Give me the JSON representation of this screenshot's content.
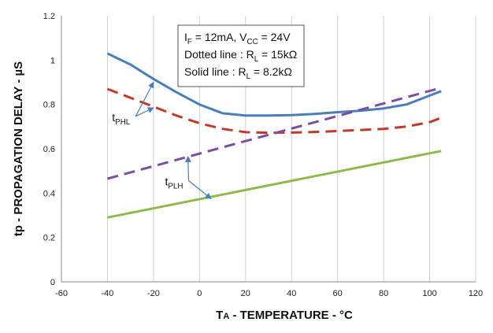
{
  "chart_data": {
    "type": "line",
    "xlabel": {
      "main": "T",
      "sub": "A",
      "rest": " - TEMPERATURE - °C"
    },
    "ylabel": "tp - PROPAGATION DELAY - µS",
    "xlim": [
      -60,
      120
    ],
    "ylim": [
      0,
      1.2
    ],
    "xticks": [
      "-60",
      "-40",
      "-20",
      "0",
      "20",
      "40",
      "60",
      "80",
      "100",
      "120"
    ],
    "yticks": [
      "0",
      "0.2",
      "0.4",
      "0.6",
      "0.8",
      "1",
      "1.2"
    ],
    "grid": "vertical",
    "colors": {
      "blue": "#4a7ebb",
      "red": "#c0392b",
      "purple": "#7b4fa0",
      "green": "#8dbb4b",
      "axis": "#888888",
      "grid": "#d0d0d0"
    },
    "series": [
      {
        "key": "tphl_8k2",
        "style": "solid",
        "color": "#4a7ebb",
        "x": [
          -40,
          -30,
          -20,
          -10,
          0,
          10,
          20,
          30,
          40,
          50,
          60,
          70,
          80,
          90,
          100,
          105
        ],
        "y": [
          1.03,
          0.98,
          0.915,
          0.855,
          0.8,
          0.76,
          0.75,
          0.75,
          0.752,
          0.757,
          0.765,
          0.772,
          0.782,
          0.8,
          0.84,
          0.86
        ]
      },
      {
        "key": "tphl_15k",
        "style": "dashed",
        "color": "#c0392b",
        "x": [
          -40,
          -30,
          -20,
          -10,
          0,
          10,
          20,
          30,
          40,
          50,
          60,
          70,
          80,
          90,
          100,
          105
        ],
        "y": [
          0.87,
          0.83,
          0.79,
          0.75,
          0.715,
          0.69,
          0.675,
          0.672,
          0.673,
          0.676,
          0.68,
          0.685,
          0.69,
          0.7,
          0.72,
          0.74
        ]
      },
      {
        "key": "tplh_15k",
        "style": "dashed",
        "color": "#7b4fa0",
        "x": [
          -40,
          105
        ],
        "y": [
          0.465,
          0.875
        ]
      },
      {
        "key": "tplh_8k2",
        "style": "solid",
        "color": "#8dbb4b",
        "x": [
          -40,
          105
        ],
        "y": [
          0.29,
          0.59
        ]
      }
    ],
    "legend": {
      "lines": [
        {
          "parts": [
            {
              "t": "I"
            },
            {
              "t": "F",
              "sub": true
            },
            {
              "t": " = 12mA, V"
            },
            {
              "t": "CC",
              "sub": true
            },
            {
              "t": " = 24V"
            }
          ]
        },
        {
          "parts": [
            {
              "t": "Dotted line : R"
            },
            {
              "t": "L",
              "sub": true
            },
            {
              "t": " = 15kΩ"
            }
          ]
        },
        {
          "parts": [
            {
              "t": "Solid line : R"
            },
            {
              "t": "L",
              "sub": true
            },
            {
              "t": " = 8.2kΩ"
            }
          ]
        }
      ],
      "placement": "top-center"
    },
    "annotations": [
      {
        "key": "tphl",
        "main": "t",
        "sub": "PHL",
        "anchor_data": [
          -38,
          0.725
        ],
        "arrows_to": [
          [
            -20,
            0.9
          ],
          [
            -20,
            0.785
          ]
        ]
      },
      {
        "key": "tplh",
        "main": "t",
        "sub": "PLH",
        "anchor_data": [
          -15,
          0.435
        ],
        "arrows_to": [
          [
            -5,
            0.565
          ],
          [
            5,
            0.375
          ]
        ]
      }
    ]
  }
}
